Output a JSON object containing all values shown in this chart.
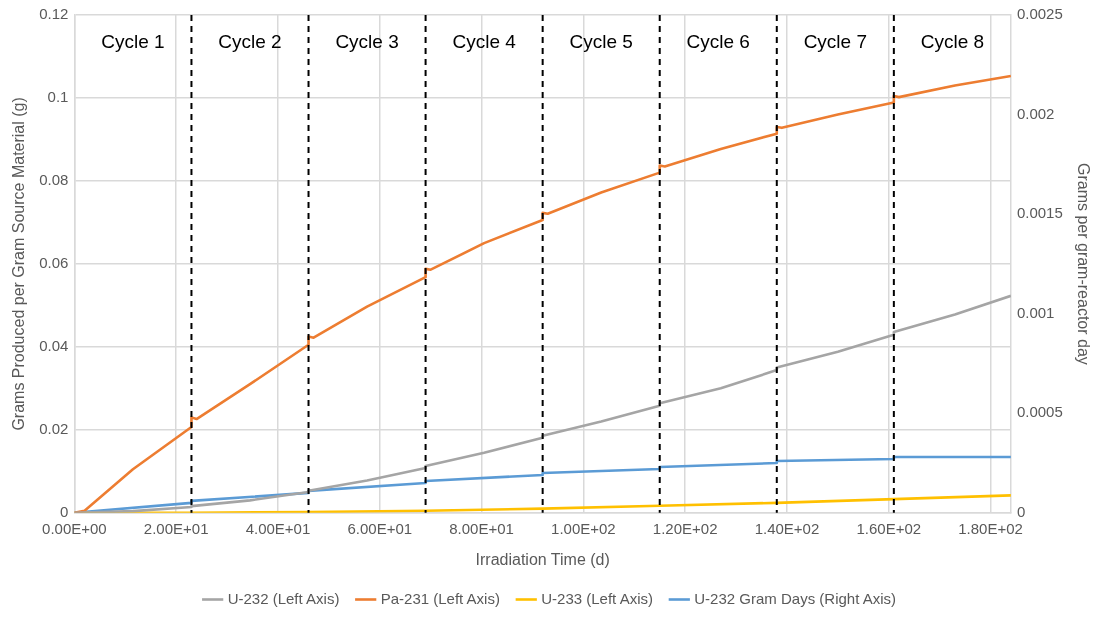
{
  "chart_data": {
    "type": "line",
    "xlabel": "Irradiation Time (d)",
    "ylabel": "Grams Produced per Gram Source Material (g)",
    "y2label": "Grams per gram-reactor day",
    "xlim": [
      0,
      184
    ],
    "xticks": [
      {
        "value": 0,
        "label": "0.00E+00"
      },
      {
        "value": 20,
        "label": "2.00E+01"
      },
      {
        "value": 40,
        "label": "4.00E+01"
      },
      {
        "value": 60,
        "label": "6.00E+01"
      },
      {
        "value": 80,
        "label": "8.00E+01"
      },
      {
        "value": 100,
        "label": "1.00E+02"
      },
      {
        "value": 120,
        "label": "1.20E+02"
      },
      {
        "value": 140,
        "label": "1.40E+02"
      },
      {
        "value": 160,
        "label": "1.60E+02"
      },
      {
        "value": 180,
        "label": "1.80E+02"
      }
    ],
    "ylim": [
      0,
      0.12
    ],
    "yticks": [
      0,
      0.02,
      0.04,
      0.06,
      0.08,
      0.1,
      0.12
    ],
    "y2lim": [
      0,
      0.0025
    ],
    "y2ticks": [
      0,
      0.0005,
      0.001,
      0.0015,
      0.002,
      0.0025
    ],
    "grid": true,
    "legend": "bottom",
    "marker": "none",
    "line_style": "solid",
    "series": [
      {
        "name": "U-232 (Left Axis)",
        "color": "#a5a5a5",
        "x": [
          0,
          11.5,
          23,
          23,
          34.5,
          46,
          46,
          57.5,
          69,
          69,
          80.5,
          92,
          92,
          103.5,
          115,
          115,
          127,
          138,
          138,
          150,
          161,
          161,
          173,
          184
        ],
        "values": [
          0,
          0.0004,
          0.0014,
          0.0016,
          0.003,
          0.005,
          0.0053,
          0.0078,
          0.0108,
          0.0113,
          0.0145,
          0.0181,
          0.0186,
          0.022,
          0.0258,
          0.0264,
          0.03,
          0.0344,
          0.035,
          0.0388,
          0.0429,
          0.0436,
          0.0478,
          0.0523
        ]
      },
      {
        "name": "Pa-231 (Left Axis)",
        "color": "#ed7d31",
        "x": [
          0,
          2,
          11.5,
          23,
          23,
          24,
          34.5,
          46,
          46,
          47,
          57.5,
          69,
          69,
          70,
          80.5,
          92,
          92,
          93,
          103.5,
          115,
          115,
          116,
          127,
          138,
          138,
          139,
          150,
          161,
          161,
          162,
          173,
          184
        ],
        "values": [
          0,
          0.0005,
          0.0105,
          0.0207,
          0.023,
          0.0226,
          0.031,
          0.0405,
          0.0425,
          0.0422,
          0.0497,
          0.0568,
          0.0588,
          0.0586,
          0.065,
          0.0706,
          0.0723,
          0.0721,
          0.0772,
          0.082,
          0.0837,
          0.0835,
          0.0877,
          0.0914,
          0.093,
          0.0928,
          0.096,
          0.0989,
          0.1005,
          0.1002,
          0.103,
          0.1053
        ]
      },
      {
        "name": "U-233 (Left Axis)",
        "color": "#ffc000",
        "x": [
          0,
          23,
          46,
          69,
          92,
          115,
          138,
          161,
          184
        ],
        "values": [
          0,
          0,
          0.0002,
          0.0005,
          0.001,
          0.0017,
          0.0024,
          0.0033,
          0.0042
        ]
      },
      {
        "name": "U-232 Gram Days (Right Axis)",
        "color": "#5b9bd5",
        "axis": "y2",
        "x": [
          0,
          23,
          23,
          46,
          46,
          69,
          69,
          92,
          92,
          115,
          115,
          138,
          138,
          161,
          161,
          184
        ],
        "values": [
          0,
          5e-05,
          6e-05,
          0.0001,
          0.00011,
          0.00015,
          0.00016,
          0.00019,
          0.0002,
          0.00022,
          0.00023,
          0.00025,
          0.00026,
          0.00027,
          0.00028,
          0.00028
        ]
      }
    ],
    "ref_lines": [
      {
        "axis": "x",
        "value": 23,
        "color": "#000000",
        "line_style": "dashed"
      },
      {
        "axis": "x",
        "value": 46,
        "color": "#000000",
        "line_style": "dashed"
      },
      {
        "axis": "x",
        "value": 69,
        "color": "#000000",
        "line_style": "dashed"
      },
      {
        "axis": "x",
        "value": 92,
        "color": "#000000",
        "line_style": "dashed"
      },
      {
        "axis": "x",
        "value": 115,
        "color": "#000000",
        "line_style": "dashed"
      },
      {
        "axis": "x",
        "value": 138,
        "color": "#000000",
        "line_style": "dashed"
      },
      {
        "axis": "x",
        "value": 161,
        "color": "#000000",
        "line_style": "dashed"
      }
    ],
    "annotations": [
      "Cycle 1",
      "Cycle 2",
      "Cycle 3",
      "Cycle 4",
      "Cycle 5",
      "Cycle 6",
      "Cycle 7",
      "Cycle 8"
    ]
  }
}
